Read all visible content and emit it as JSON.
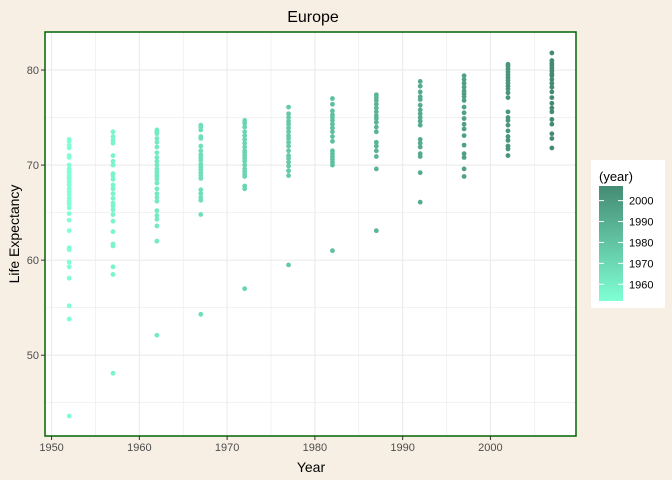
{
  "chart_data": {
    "type": "scatter",
    "title": "Europe",
    "xlabel": "Year",
    "ylabel": "Life Expectancy",
    "xlim": [
      1949.25,
      2009.75
    ],
    "ylim": [
      41.5,
      84
    ],
    "x_ticks": [
      1950,
      1960,
      1970,
      1980,
      1990,
      2000
    ],
    "y_ticks": [
      50,
      60,
      70,
      80
    ],
    "grid": true,
    "legend": {
      "title": "(year)",
      "placement": "right",
      "ticks": [
        1960,
        1970,
        1980,
        1990,
        2000
      ],
      "range": [
        1952,
        2007
      ],
      "color_low": "#7fffd4",
      "color_high": "#458b74"
    },
    "colors": {
      "background": "#f8efe4",
      "panel": "#ffffff",
      "panel_border": "#006400",
      "grid": "#ebebeb"
    },
    "points": [
      {
        "x": 1952,
        "y": [
          72.7,
          72.5,
          72.1,
          71.8,
          71.0,
          70.8,
          70.0,
          69.6,
          69.4,
          69.2,
          68.9,
          68.7,
          68.5,
          68.2,
          67.9,
          67.5,
          67.2,
          66.9,
          66.5,
          66.2,
          65.9,
          65.5,
          64.9,
          64.2,
          63.1,
          61.3,
          61.1,
          59.8,
          59.3,
          58.1,
          55.2,
          53.8,
          43.6
        ]
      },
      {
        "x": 1957,
        "y": [
          73.5,
          73.0,
          72.6,
          72.3,
          71.0,
          70.4,
          70.0,
          69.1,
          68.9,
          68.5,
          67.9,
          67.5,
          67.0,
          66.5,
          66.0,
          65.7,
          65.3,
          64.8,
          64.1,
          63.0,
          61.7,
          61.5,
          59.3,
          58.5,
          48.1
        ]
      },
      {
        "x": 1962,
        "y": [
          73.7,
          73.5,
          73.3,
          72.8,
          72.4,
          71.9,
          71.3,
          70.8,
          70.4,
          70.0,
          69.6,
          69.3,
          69.0,
          68.8,
          68.5,
          68.1,
          67.5,
          67.0,
          66.6,
          66.2,
          65.2,
          64.7,
          64.3,
          63.6,
          62.0,
          52.1
        ]
      },
      {
        "x": 1967,
        "y": [
          74.2,
          74.0,
          73.7,
          73.0,
          72.8,
          72.0,
          71.5,
          71.1,
          70.8,
          70.5,
          70.1,
          69.8,
          69.5,
          69.2,
          68.9,
          68.6,
          67.4,
          67.0,
          66.6,
          66.3,
          64.8,
          54.3
        ]
      },
      {
        "x": 1972,
        "y": [
          74.7,
          74.4,
          74.0,
          73.5,
          73.1,
          72.7,
          72.3,
          71.9,
          71.5,
          71.3,
          71.0,
          70.7,
          70.4,
          70.0,
          69.6,
          69.3,
          69.0,
          68.8,
          67.8,
          67.5,
          57.0
        ]
      },
      {
        "x": 1977,
        "y": [
          76.1,
          75.4,
          75.0,
          74.6,
          74.3,
          73.9,
          73.5,
          73.1,
          72.8,
          72.4,
          72.0,
          71.5,
          71.0,
          70.7,
          70.3,
          69.9,
          69.4,
          68.9,
          59.5
        ]
      },
      {
        "x": 1982,
        "y": [
          77.0,
          76.4,
          75.7,
          75.3,
          75.0,
          74.7,
          74.3,
          73.9,
          73.5,
          73.0,
          72.5,
          71.5,
          71.2,
          70.9,
          70.6,
          70.3,
          70.0,
          61.0
        ]
      },
      {
        "x": 1987,
        "y": [
          77.4,
          77.1,
          76.8,
          76.4,
          76.0,
          75.6,
          75.2,
          74.9,
          74.5,
          74.0,
          73.5,
          72.4,
          72.0,
          71.5,
          70.9,
          69.6,
          63.1
        ]
      },
      {
        "x": 1992,
        "y": [
          78.8,
          78.3,
          77.7,
          77.2,
          76.9,
          76.3,
          75.8,
          75.4,
          75.0,
          74.6,
          74.2,
          72.7,
          72.3,
          71.9,
          71.2,
          70.9,
          69.2,
          66.1
        ]
      },
      {
        "x": 1997,
        "y": [
          79.4,
          79.0,
          78.6,
          78.2,
          77.8,
          77.5,
          77.2,
          76.8,
          76.1,
          75.5,
          74.9,
          74.3,
          73.8,
          73.1,
          72.1,
          71.2,
          70.8,
          69.6,
          68.8
        ]
      },
      {
        "x": 2002,
        "y": [
          80.6,
          80.4,
          80.1,
          79.8,
          79.5,
          79.2,
          78.9,
          78.6,
          78.3,
          78.0,
          77.6,
          77.1,
          75.6,
          75.0,
          74.7,
          74.2,
          73.6,
          73.0,
          72.6,
          72.0,
          71.7,
          71.0
        ]
      },
      {
        "x": 2007,
        "y": [
          81.8,
          81.0,
          80.7,
          80.5,
          80.2,
          79.9,
          79.6,
          79.4,
          79.0,
          78.6,
          78.2,
          77.7,
          77.1,
          76.5,
          76.0,
          75.6,
          74.8,
          74.3,
          73.3,
          72.8,
          71.8
        ]
      }
    ]
  }
}
